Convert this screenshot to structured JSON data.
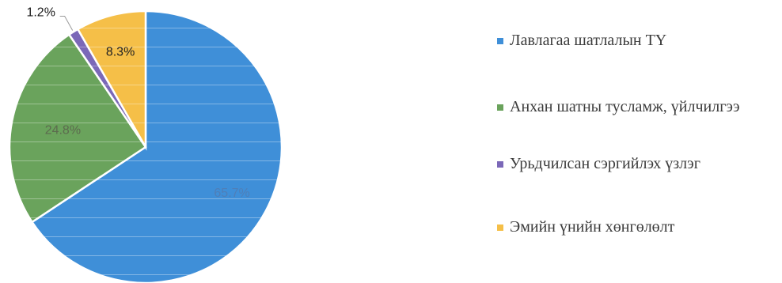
{
  "chart_data": {
    "type": "pie",
    "title": "",
    "slices": [
      {
        "name": "Лавлагаа шатлалын ТҮ",
        "value": 65.7,
        "label": "65.7%",
        "color": "#3f8fd8"
      },
      {
        "name": "Анхан шатны тусламж, үйлчилгээ",
        "value": 24.8,
        "label": "24.8%",
        "color": "#6aa35c"
      },
      {
        "name": "Урьдчилсан сэргийлэх үзлэг",
        "value": 1.2,
        "label": "1.2%",
        "color": "#7b68b8"
      },
      {
        "name": "Эмийн үнийн хөнгөлөлт",
        "value": 8.3,
        "label": "8.3%",
        "color": "#f5bf48"
      }
    ],
    "legend_position": "right"
  }
}
